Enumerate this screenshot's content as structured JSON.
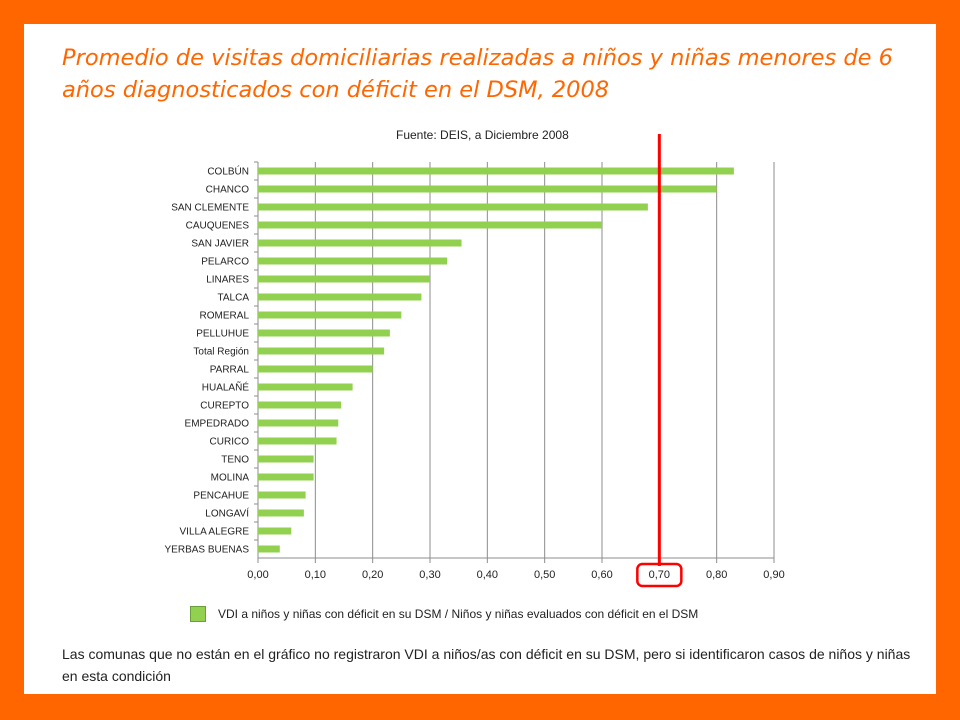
{
  "title": "Promedio de visitas domiciliarias realizadas a niños y niñas menores de 6 años diagnosticados con déficit en el DSM, 2008",
  "source": "Fuente: DEIS, a Diciembre 2008",
  "note": "Las comunas que no están en el gráfico no registraron VDI a niños/as con déficit en su DSM, pero si identificaron casos de niños y niñas en esta condición",
  "chart_data": {
    "type": "bar",
    "orientation": "horizontal",
    "categories": [
      "COLBÚN",
      "CHANCO",
      "SAN CLEMENTE",
      "CAUQUENES",
      "SAN JAVIER",
      "PELARCO",
      "LINARES",
      "TALCA",
      "ROMERAL",
      "PELLUHUE",
      "Total Región",
      "PARRAL",
      "HUALAÑÉ",
      "CUREPTO",
      "EMPEDRADO",
      "CURICO",
      "TENO",
      "MOLINA",
      "PENCAHUE",
      "LONGAVÍ",
      "VILLA ALEGRE",
      "YERBAS BUENAS"
    ],
    "series": [
      {
        "name": "VDI a niños y niñas con déficit en su DSM / Niños y niñas evaluados con déficit en el DSM",
        "color": "#92d050",
        "values": [
          0.83,
          0.8,
          0.68,
          0.6,
          0.355,
          0.33,
          0.3,
          0.285,
          0.25,
          0.23,
          0.22,
          0.2,
          0.165,
          0.145,
          0.14,
          0.137,
          0.097,
          0.097,
          0.083,
          0.08,
          0.058,
          0.038
        ]
      }
    ],
    "xlim": [
      0,
      0.9
    ],
    "xticks": [
      "0,00",
      "0,10",
      "0,20",
      "0,30",
      "0,40",
      "0,50",
      "0,60",
      "0,70",
      "0,80",
      "0,90"
    ],
    "grid": true,
    "legend": "bottom",
    "annotations": [
      {
        "type": "vertical-line",
        "x": 0.7,
        "color": "#ff0000"
      },
      {
        "type": "highlight-box",
        "target_tick": "0,70",
        "color": "#ff0000"
      }
    ]
  }
}
